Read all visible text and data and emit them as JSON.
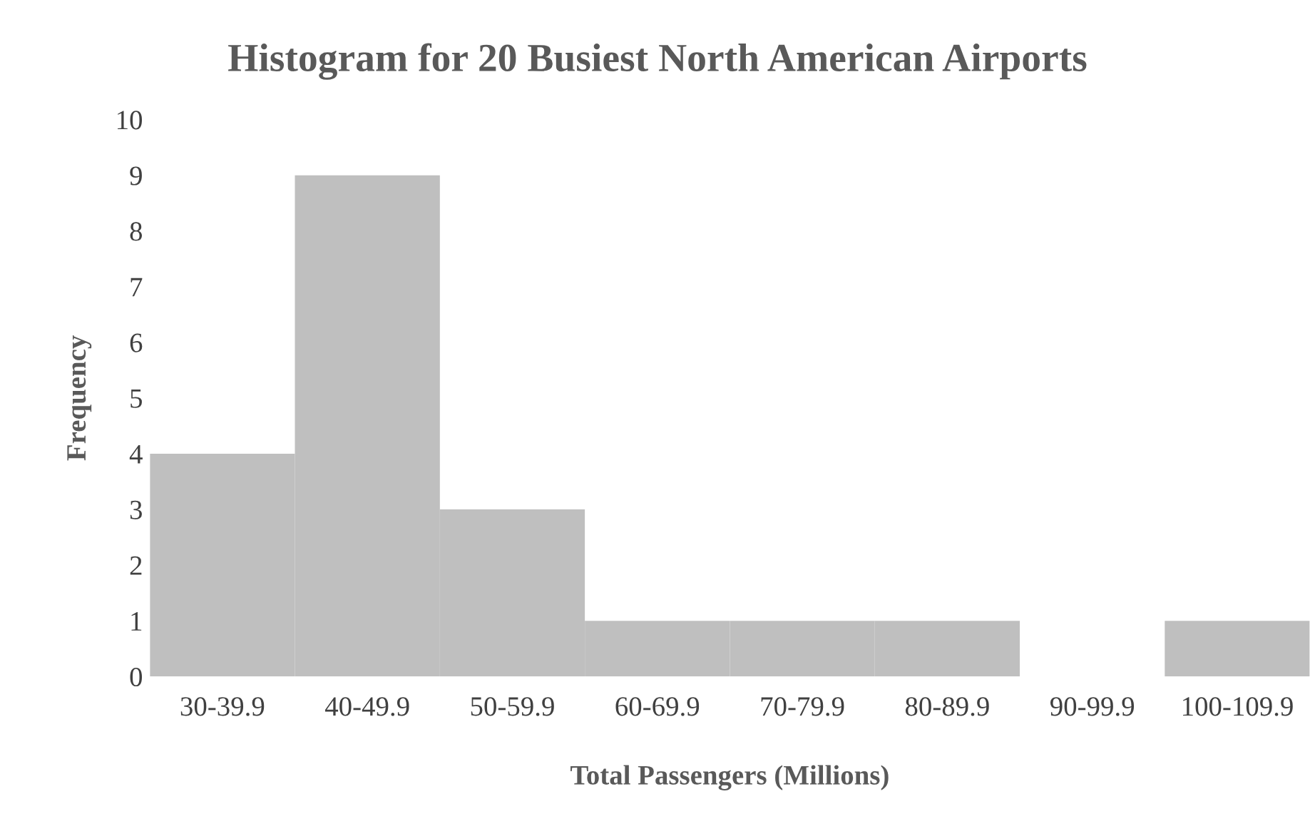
{
  "chart_data": {
    "type": "bar",
    "title": "Histogram for 20 Busiest North American Airports",
    "xlabel": "Total Passengers (Millions)",
    "ylabel": "Frequency",
    "categories": [
      "30-39.9",
      "40-49.9",
      "50-59.9",
      "60-69.9",
      "70-79.9",
      "80-89.9",
      "90-99.9",
      "100-109.9"
    ],
    "values": [
      4,
      9,
      3,
      1,
      1,
      1,
      0,
      1
    ],
    "color": "#bfbfbf",
    "ylim": [
      0,
      10
    ],
    "yticks": [
      0,
      1,
      2,
      3,
      4,
      5,
      6,
      7,
      8,
      9,
      10
    ],
    "grid": false,
    "legend": false
  }
}
